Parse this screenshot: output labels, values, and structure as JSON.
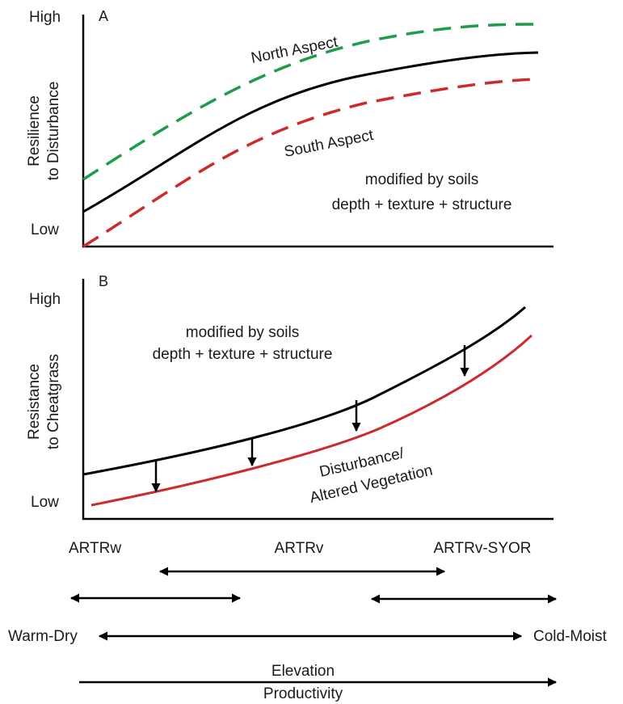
{
  "panel_a": {
    "letter": "A",
    "y_high": "High",
    "y_low": "Low",
    "ylabel_line1": "Resilience",
    "ylabel_line2": "to Disturbance",
    "north_label": "North Aspect",
    "south_label": "South Aspect",
    "soils_line1": "modified by soils",
    "soils_line2": "depth + texture + structure",
    "colors": {
      "north": "#1e9c4a",
      "mid": "#000000",
      "south": "#cc2b2b"
    }
  },
  "panel_b": {
    "letter": "B",
    "y_high": "High",
    "y_low": "Low",
    "ylabel_line1": "Resistance",
    "ylabel_line2": "to Cheatgrass",
    "soils_line1": "modified by soils",
    "soils_line2": "depth + texture + structure",
    "disturbance_line1": "Disturbance/",
    "disturbance_line2": "Altered Vegetation",
    "colors": {
      "upper": "#000000",
      "lower": "#cc2b2b"
    }
  },
  "gradient": {
    "type_w": "ARTRw",
    "type_v": "ARTRv",
    "type_vs": "ARTRv-SYOR",
    "warm_dry": "Warm-Dry",
    "cold_moist": "Cold-Moist",
    "elevation": "Elevation",
    "productivity": "Productivity"
  }
}
